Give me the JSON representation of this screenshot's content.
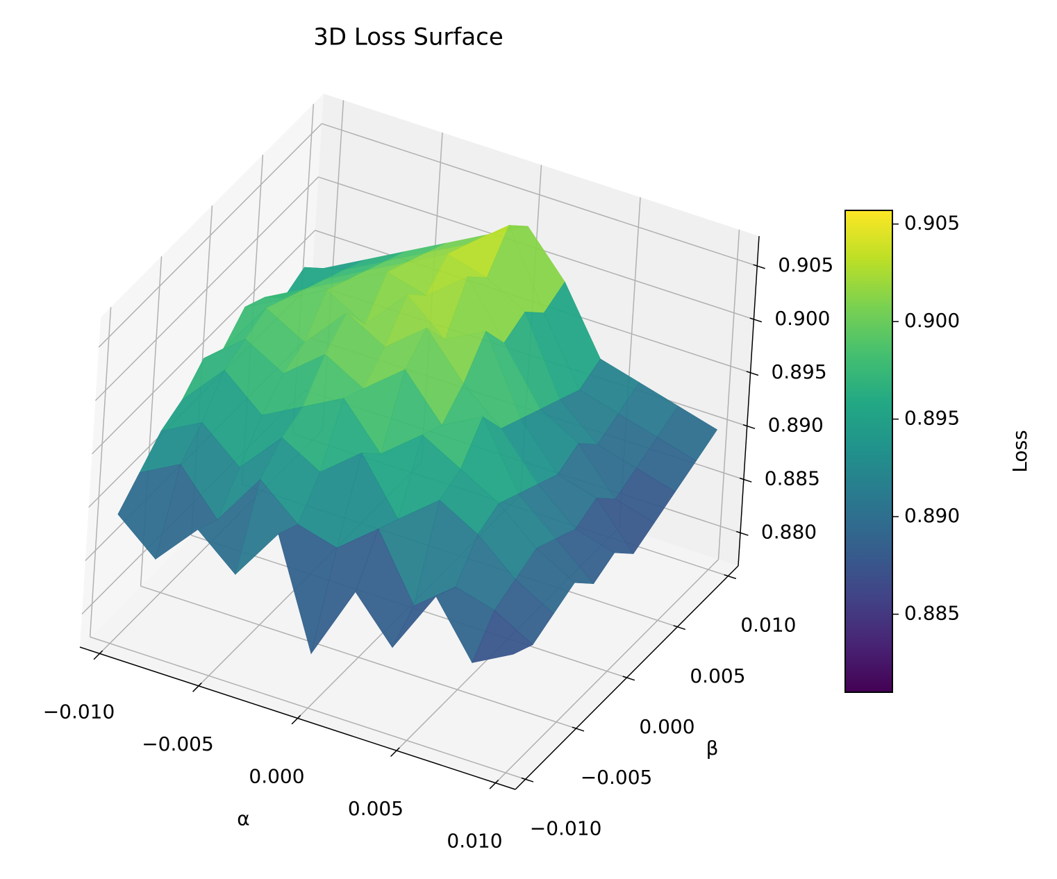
{
  "chart_data": {
    "type": "surface",
    "title": "3D Loss Surface",
    "x_label": "α",
    "y_label": "β",
    "z_label": "Loss",
    "x": [
      -0.01,
      -0.008,
      -0.006,
      -0.004,
      -0.002,
      0.0,
      0.002,
      0.004,
      0.006,
      0.008,
      0.01
    ],
    "y": [
      -0.01,
      -0.008,
      -0.006,
      -0.004,
      -0.002,
      0.0,
      0.002,
      0.004,
      0.006,
      0.008,
      0.01
    ],
    "z": [
      [
        0.889,
        0.886,
        0.89,
        0.887,
        0.892,
        0.882,
        0.889,
        0.885,
        0.891,
        0.886,
        0.888
      ],
      [
        0.891,
        0.893,
        0.889,
        0.894,
        0.891,
        0.89,
        0.893,
        0.887,
        0.89,
        0.889,
        0.887
      ],
      [
        0.893,
        0.895,
        0.892,
        0.896,
        0.894,
        0.897,
        0.892,
        0.895,
        0.893,
        0.89,
        0.888
      ],
      [
        0.894,
        0.898,
        0.895,
        0.897,
        0.899,
        0.895,
        0.898,
        0.896,
        0.894,
        0.891,
        0.889
      ],
      [
        0.896,
        0.899,
        0.897,
        0.9,
        0.898,
        0.901,
        0.897,
        0.899,
        0.893,
        0.89,
        0.887
      ],
      [
        0.895,
        0.9,
        0.898,
        0.902,
        0.9,
        0.903,
        0.899,
        0.896,
        0.892,
        0.889,
        0.888
      ],
      [
        0.897,
        0.899,
        0.901,
        0.899,
        0.903,
        0.9,
        0.902,
        0.895,
        0.891,
        0.89,
        0.886
      ],
      [
        0.896,
        0.898,
        0.9,
        0.902,
        0.901,
        0.904,
        0.899,
        0.894,
        0.892,
        0.888,
        0.887
      ],
      [
        0.894,
        0.897,
        0.899,
        0.901,
        0.903,
        0.902,
        0.9,
        0.893,
        0.89,
        0.889,
        0.888
      ],
      [
        0.895,
        0.896,
        0.898,
        0.9,
        0.902,
        0.905,
        0.898,
        0.892,
        0.891,
        0.89,
        0.889
      ],
      [
        0.893,
        0.895,
        0.897,
        0.899,
        0.901,
        0.903,
        0.899,
        0.893,
        0.892,
        0.891,
        0.89
      ]
    ],
    "xlim": [
      -0.011,
      0.011
    ],
    "ylim": [
      -0.011,
      0.011
    ],
    "zlim": [
      0.8769,
      0.9078
    ],
    "xticks": [
      {
        "value": -0.01,
        "label": "−0.010"
      },
      {
        "value": -0.005,
        "label": "−0.005"
      },
      {
        "value": 0,
        "label": "0.000"
      },
      0.005,
      {
        "value": 0.01,
        "label": "0.010"
      }
    ],
    "yticks": [
      {
        "value": -0.01,
        "label": "−0.010"
      },
      {
        "value": -0.005,
        "label": "−0.005"
      },
      {
        "value": 0,
        "label": "0.000"
      },
      0.005,
      {
        "value": 0.01,
        "label": "0.010"
      }
    ],
    "zticks": [
      {
        "value": 0.88,
        "label": "0.880"
      },
      0.885,
      {
        "value": 0.89,
        "label": "0.890"
      },
      0.895,
      {
        "value": 0.9,
        "label": "0.900"
      },
      0.905
    ],
    "colormap": "viridis",
    "grid": true,
    "colorbar": {
      "label": "Loss",
      "lim": [
        0.881,
        0.9057
      ],
      "ticks": [
        0.885,
        {
          "value": 0.89,
          "label": "0.890"
        },
        0.895,
        {
          "value": 0.9,
          "label": "0.900"
        },
        0.905
      ]
    }
  }
}
